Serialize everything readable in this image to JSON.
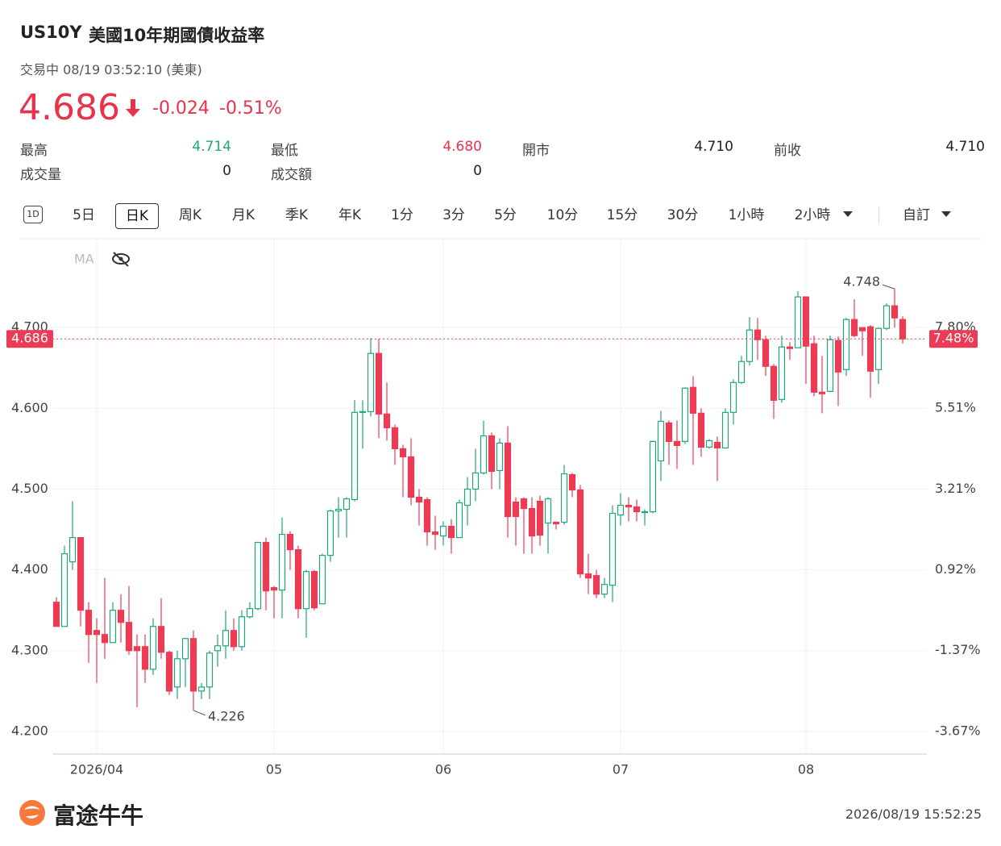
{
  "header": {
    "symbol": "US10Y",
    "name": "美國10年期國債收益率",
    "status": "交易中 08/19 03:52:10 (美東)",
    "price": "4.686",
    "change": "-0.024",
    "change_pct": "-0.51%"
  },
  "stats": [
    {
      "label": "最高",
      "value": "4.714"
    },
    {
      "label": "最低",
      "value": "4.680"
    },
    {
      "label": "開市",
      "value": "4.710"
    },
    {
      "label": "前收",
      "value": "4.710"
    },
    {
      "label": "成交量",
      "value": "0"
    },
    {
      "label": "成交額",
      "value": "0"
    }
  ],
  "tabs": [
    "1D",
    "5日",
    "日K",
    "周K",
    "月K",
    "季K",
    "年K",
    "1分",
    "3分",
    "5分",
    "10分",
    "15分",
    "30分",
    "1小時",
    "2小時",
    "自訂"
  ],
  "indicator": "MA",
  "footer": {
    "brand": "富途牛牛",
    "timestamp": "2026/08/19 15:52:25"
  },
  "chart_data": {
    "type": "candlestick",
    "up_color": "#1fa67a",
    "down_color": "#ec3b55",
    "categories": [
      null,
      null,
      null,
      null,
      null,
      "2026/04",
      null,
      null,
      null,
      null,
      null,
      null,
      null,
      null,
      null,
      null,
      null,
      null,
      null,
      null,
      null,
      null,
      null,
      null,
      null,
      null,
      null,
      "05",
      null,
      null,
      null,
      null,
      null,
      null,
      null,
      null,
      null,
      null,
      null,
      null,
      null,
      null,
      null,
      null,
      null,
      null,
      null,
      null,
      "06",
      null,
      null,
      null,
      null,
      null,
      null,
      null,
      null,
      null,
      null,
      null,
      null,
      null,
      null,
      null,
      null,
      null,
      null,
      null,
      null,
      null,
      "07",
      null,
      null,
      null,
      null,
      null,
      null,
      null,
      null,
      null,
      null,
      null,
      null,
      null,
      null,
      null,
      null,
      null,
      null,
      null,
      null,
      null,
      null,
      "08",
      null,
      null,
      null,
      null,
      null,
      null,
      null,
      null,
      null,
      null,
      null,
      null
    ],
    "open": [
      4.36,
      4.33,
      4.41,
      4.44,
      4.35,
      4.325,
      4.32,
      4.31,
      4.35,
      4.335,
      4.305,
      4.305,
      4.277,
      4.33,
      4.298,
      4.255,
      4.29,
      4.315,
      4.25,
      4.255,
      4.3,
      4.306,
      4.325,
      4.305,
      4.342,
      4.352,
      4.434,
      4.378,
      4.375,
      4.444,
      4.425,
      4.352,
      4.398,
      4.358,
      4.418,
      4.473,
      4.475,
      4.487,
      4.595,
      4.596,
      4.668,
      4.593,
      4.576,
      4.55,
      4.54,
      4.49,
      4.487,
      4.447,
      4.442,
      4.454,
      4.44,
      4.48,
      4.5,
      4.52,
      4.566,
      4.523,
      4.557,
      4.484,
      4.488,
      4.476,
      4.485,
      4.458,
      4.459,
      4.459,
      4.518,
      4.499,
      4.395,
      4.393,
      4.37,
      4.381,
      4.468,
      4.48,
      4.478,
      4.472,
      4.472,
      4.535,
      4.582,
      4.559,
      4.559,
      4.626,
      4.594,
      4.552,
      4.558,
      4.551,
      4.595,
      4.632,
      4.658,
      4.697,
      4.685,
      4.652,
      4.611,
      4.676,
      4.675,
      4.738,
      4.68,
      4.62,
      4.621,
      4.684,
      4.648,
      4.71,
      4.7,
      4.701,
      4.648,
      4.699,
      4.727,
      4.71
    ],
    "high": [
      4.366,
      4.43,
      4.485,
      4.44,
      4.36,
      4.34,
      4.39,
      4.36,
      4.37,
      4.38,
      4.32,
      4.32,
      4.34,
      4.365,
      4.3,
      4.3,
      4.316,
      4.325,
      4.26,
      4.3,
      4.32,
      4.35,
      4.34,
      4.35,
      4.36,
      4.435,
      4.44,
      4.38,
      4.465,
      4.448,
      4.43,
      4.4,
      4.4,
      4.42,
      4.475,
      4.49,
      4.49,
      4.61,
      4.61,
      4.687,
      4.686,
      4.632,
      4.58,
      4.555,
      4.563,
      4.5,
      4.49,
      4.467,
      4.46,
      4.463,
      4.487,
      4.515,
      4.55,
      4.585,
      4.57,
      4.563,
      4.578,
      4.49,
      4.49,
      4.49,
      4.492,
      4.49,
      4.46,
      4.53,
      4.52,
      4.505,
      4.42,
      4.4,
      4.39,
      4.48,
      4.495,
      4.49,
      4.487,
      4.475,
      4.56,
      4.597,
      4.585,
      4.585,
      4.626,
      4.64,
      4.6,
      4.562,
      4.565,
      4.6,
      4.636,
      4.665,
      4.713,
      4.712,
      4.69,
      4.655,
      4.69,
      4.682,
      4.745,
      4.738,
      4.69,
      4.665,
      4.69,
      4.689,
      4.712,
      4.735,
      4.7,
      4.703,
      4.7,
      4.73,
      4.748,
      4.714
    ],
    "low": [
      4.33,
      4.33,
      4.4,
      4.33,
      4.285,
      4.26,
      4.29,
      4.31,
      4.31,
      4.295,
      4.23,
      4.26,
      4.27,
      4.29,
      4.245,
      4.24,
      4.255,
      4.226,
      4.24,
      4.24,
      4.28,
      4.29,
      4.3,
      4.3,
      4.34,
      4.35,
      4.35,
      4.34,
      4.34,
      4.4,
      4.34,
      4.316,
      4.35,
      4.358,
      4.41,
      4.44,
      4.44,
      4.485,
      4.55,
      4.59,
      4.563,
      4.56,
      4.53,
      4.49,
      4.48,
      4.455,
      4.43,
      4.425,
      4.43,
      4.42,
      4.44,
      4.455,
      4.485,
      4.518,
      4.5,
      4.5,
      4.44,
      4.43,
      4.42,
      4.42,
      4.43,
      4.42,
      4.45,
      4.456,
      4.49,
      4.39,
      4.37,
      4.365,
      4.365,
      4.36,
      4.455,
      4.46,
      4.46,
      4.455,
      4.47,
      4.51,
      4.53,
      4.525,
      4.556,
      4.53,
      4.54,
      4.55,
      4.51,
      4.55,
      4.58,
      4.63,
      4.653,
      4.66,
      4.64,
      4.587,
      4.607,
      4.66,
      4.675,
      4.63,
      4.615,
      4.594,
      4.62,
      4.603,
      4.64,
      4.688,
      4.665,
      4.613,
      4.63,
      4.697,
      4.7,
      4.68
    ],
    "close": [
      4.33,
      4.42,
      4.44,
      4.35,
      4.32,
      4.32,
      4.31,
      4.35,
      4.335,
      4.3,
      4.3,
      4.277,
      4.33,
      4.298,
      4.25,
      4.29,
      4.315,
      4.25,
      4.255,
      4.297,
      4.306,
      4.325,
      4.305,
      4.342,
      4.352,
      4.434,
      4.374,
      4.375,
      4.444,
      4.425,
      4.352,
      4.398,
      4.353,
      4.418,
      4.473,
      4.475,
      4.488,
      4.595,
      4.596,
      4.668,
      4.593,
      4.576,
      4.55,
      4.54,
      4.49,
      4.484,
      4.447,
      4.444,
      4.454,
      4.44,
      4.483,
      4.5,
      4.52,
      4.566,
      4.522,
      4.557,
      4.466,
      4.466,
      4.476,
      4.442,
      4.443,
      4.488,
      4.457,
      4.519,
      4.499,
      4.395,
      4.39,
      4.37,
      4.382,
      4.47,
      4.48,
      4.478,
      4.472,
      4.472,
      4.559,
      4.584,
      4.559,
      4.554,
      4.625,
      4.594,
      4.552,
      4.56,
      4.551,
      4.595,
      4.632,
      4.658,
      4.697,
      4.685,
      4.652,
      4.61,
      4.676,
      4.674,
      4.738,
      4.677,
      4.62,
      4.618,
      4.685,
      4.645,
      4.71,
      4.69,
      4.696,
      4.646,
      4.699,
      4.727,
      4.712,
      4.686
    ],
    "ylim": [
      4.172,
      4.809
    ],
    "yticks": [
      {
        "value": 4.2,
        "label": "4.200"
      },
      {
        "value": 4.3,
        "label": "4.300"
      },
      {
        "value": 4.4,
        "label": "4.400"
      },
      {
        "value": 4.5,
        "label": "4.500"
      },
      {
        "value": 4.6,
        "label": "4.600"
      },
      {
        "value": 4.7,
        "label": "4.700"
      }
    ],
    "y2lim": [
      -4.31,
      10.3
    ],
    "y2ticks": [
      {
        "value": -3.67,
        "label": "-3.67%"
      },
      {
        "value": -1.37,
        "label": "-1.37%"
      },
      {
        "value": 0.92,
        "label": "0.92%"
      },
      {
        "value": 3.21,
        "label": "3.21%"
      },
      {
        "value": 5.51,
        "label": "5.51%"
      },
      {
        "value": 7.8,
        "label": "7.80%"
      }
    ],
    "grid": true,
    "last_price": 4.686,
    "last_price_y2_label": "7.48%",
    "annotations": [
      4.226,
      4.748
    ]
  }
}
